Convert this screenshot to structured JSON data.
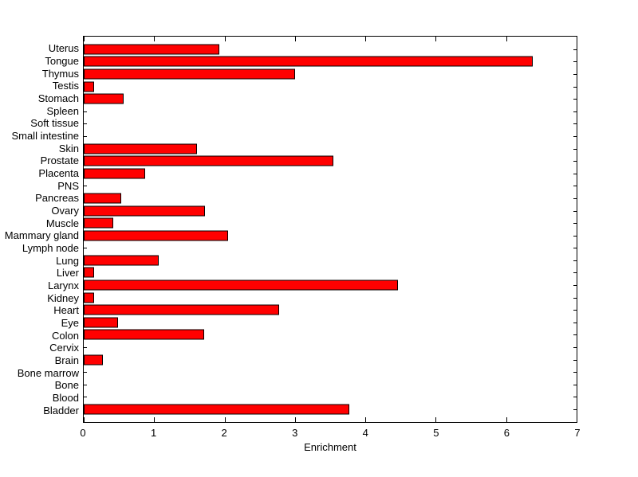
{
  "figure": {
    "background_color": "#ffffff",
    "axis_color": "#000000",
    "text_color": "#000000"
  },
  "chart_data": {
    "type": "bar",
    "orientation": "horizontal",
    "title": "",
    "xlabel": "Enrichment",
    "ylabel": "",
    "xlim": [
      0,
      7
    ],
    "x_ticks": [
      0,
      1,
      2,
      3,
      4,
      5,
      6,
      7
    ],
    "grid": false,
    "legend": null,
    "bar_color": "#ff0000",
    "bar_edge_color": "#000000",
    "categories": [
      "Uterus",
      "Tongue",
      "Thymus",
      "Testis",
      "Stomach",
      "Spleen",
      "Soft tissue",
      "Small intestine",
      "Skin",
      "Prostate",
      "Placenta",
      "PNS",
      "Pancreas",
      "Ovary",
      "Muscle",
      "Mammary gland",
      "Lymph node",
      "Lung",
      "Liver",
      "Larynx",
      "Kidney",
      "Heart",
      "Eye",
      "Colon",
      "Cervix",
      "Brain",
      "Bone marrow",
      "Bone",
      "Blood",
      "Bladder"
    ],
    "values": [
      1.92,
      6.38,
      3.0,
      0.15,
      0.57,
      0,
      0,
      0,
      1.61,
      3.54,
      0.87,
      0,
      0.53,
      1.72,
      0.42,
      2.05,
      0,
      1.07,
      0.15,
      4.46,
      0.15,
      2.78,
      0.49,
      1.71,
      0,
      0.27,
      0,
      0,
      0,
      3.77
    ]
  }
}
